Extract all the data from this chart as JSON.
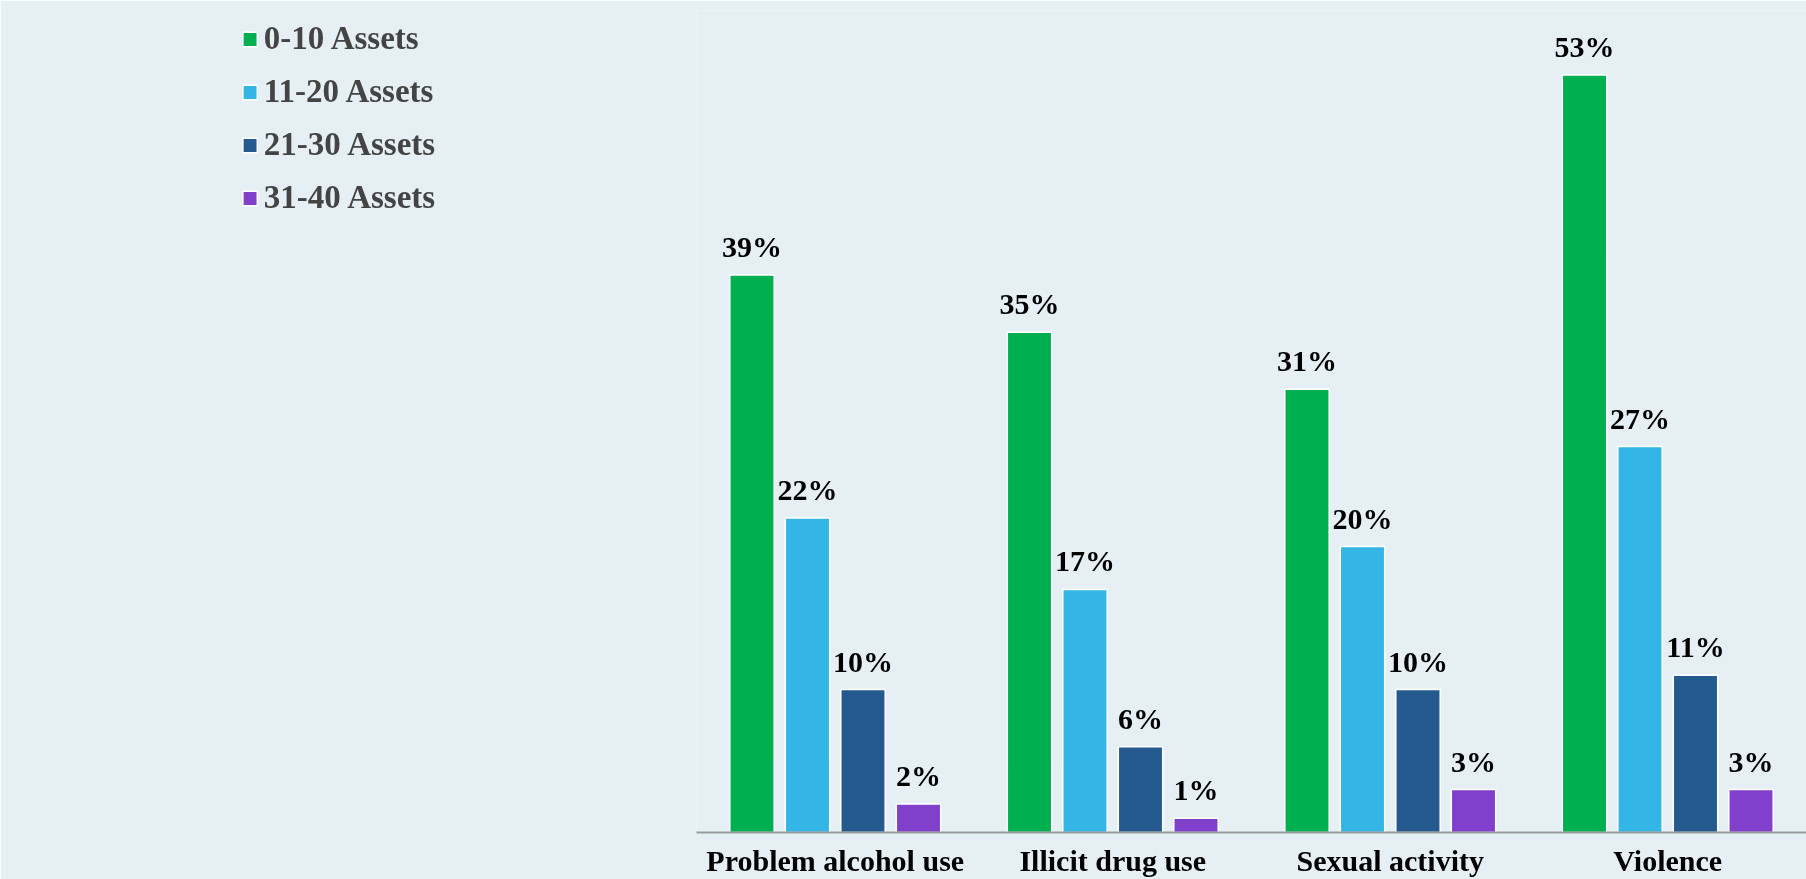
{
  "chart_data": {
    "type": "bar",
    "categories": [
      "Problem alcohol use",
      "Illicit drug use",
      "Sexual activity",
      "Violence"
    ],
    "series": [
      {
        "name": "0-10 Assets",
        "color": "#00b050",
        "values": [
          39,
          35,
          31,
          53
        ],
        "value_labels": [
          "39%",
          "35%",
          "31%",
          "53%"
        ]
      },
      {
        "name": "11-20 Assets",
        "color": "#33b5e5",
        "values": [
          22,
          17,
          20,
          27
        ],
        "value_labels": [
          "22%",
          "17%",
          "20%",
          "27%"
        ]
      },
      {
        "name": "21-30 Assets",
        "color": "#255a8e",
        "values": [
          10,
          6,
          10,
          11
        ],
        "value_labels": [
          "10%",
          "6%",
          "10%",
          "11%"
        ]
      },
      {
        "name": "31-40 Assets",
        "color": "#8040cc",
        "values": [
          2,
          1,
          3,
          3
        ],
        "value_labels": [
          "2%",
          "1%",
          "3%",
          "3%"
        ]
      }
    ],
    "legend": "left",
    "grid": false
  }
}
